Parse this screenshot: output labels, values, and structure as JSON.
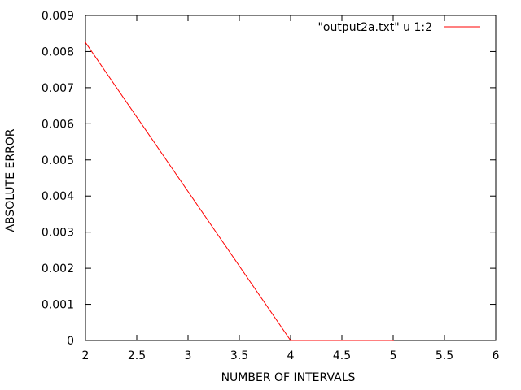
{
  "chart_data": {
    "type": "line",
    "xlabel": "NUMBER OF INTERVALS",
    "ylabel": "ABSOLUTE ERROR",
    "xlim": [
      2,
      6
    ],
    "ylim": [
      0,
      0.009
    ],
    "xticks": [
      "2",
      "2.5",
      "3",
      "3.5",
      "4",
      "4.5",
      "5",
      "5.5",
      "6"
    ],
    "yticks": [
      "0",
      "0.001",
      "0.002",
      "0.003",
      "0.004",
      "0.005",
      "0.006",
      "0.007",
      "0.008",
      "0.009"
    ],
    "grid": false,
    "legend": "top-right",
    "series": [
      {
        "name": "\"output2a.txt\" u 1:2",
        "color": "#ff0000",
        "x": [
          2,
          4,
          5
        ],
        "y": [
          0.00825,
          0.0,
          0.0
        ]
      }
    ]
  }
}
